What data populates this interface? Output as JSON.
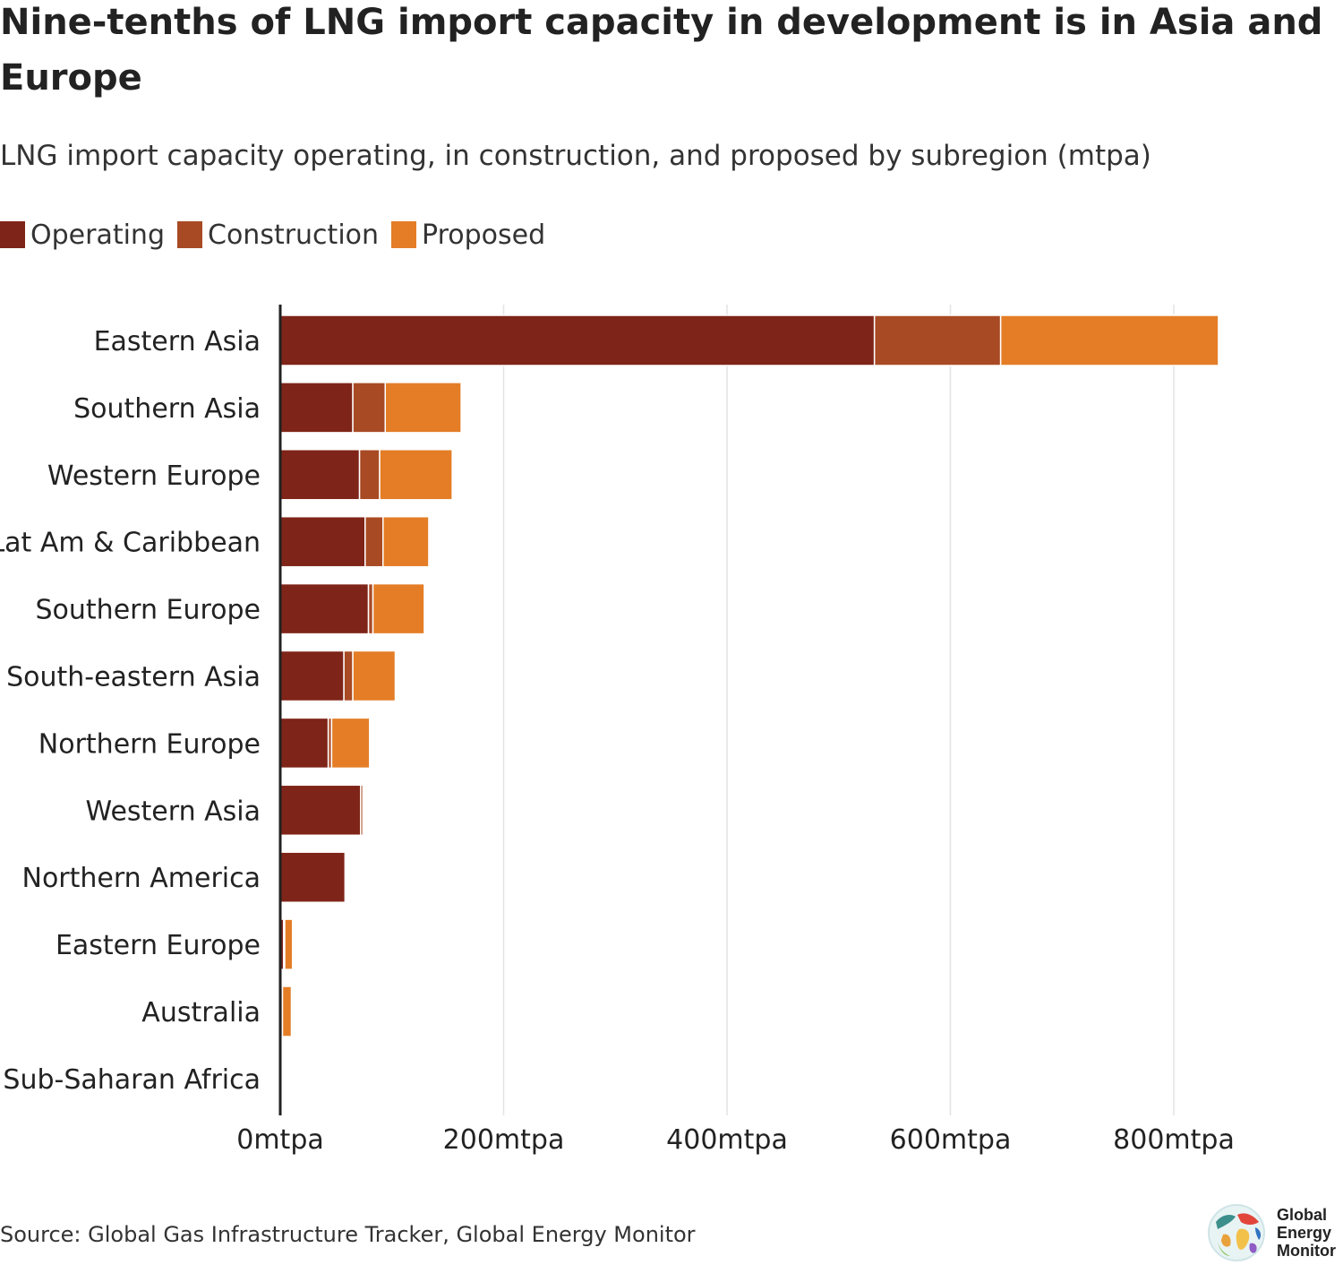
{
  "title": "Nine-tenths of LNG import capacity in development is in Asia and Europe",
  "subtitle": "LNG import capacity operating, in construction, and proposed by subregion (mtpa)",
  "legend": [
    {
      "label": "Operating",
      "color": "#7f2418"
    },
    {
      "label": "Construction",
      "color": "#a84a24"
    },
    {
      "label": "Proposed",
      "color": "#e47d26"
    }
  ],
  "source": "Source: Global Gas Infrastructure Tracker, Global Energy Monitor",
  "logo": {
    "line1": "Global",
    "line2": "Energy",
    "line3": "Monitor"
  },
  "chart_data": {
    "type": "bar",
    "orientation": "horizontal",
    "stacked": true,
    "title": "Nine-tenths of LNG import capacity in development is in Asia and Europe",
    "xlabel": "",
    "ylabel": "",
    "xlim": [
      0,
      880
    ],
    "xticks": [
      0,
      200,
      400,
      600,
      800
    ],
    "tick_suffix": "mtpa",
    "grid": true,
    "legend_position": "top-left",
    "categories": [
      "Eastern Asia",
      "Southern Asia",
      "Western Europe",
      "Lat Am & Caribbean",
      "Southern Europe",
      "South-eastern Asia",
      "Northern Europe",
      "Western Asia",
      "Northern America",
      "Eastern Europe",
      "Australia",
      "Sub-Saharan Africa"
    ],
    "series": [
      {
        "name": "Operating",
        "color": "#7f2418",
        "values": [
          532,
          65,
          71,
          76,
          79,
          57,
          43,
          72,
          58,
          3,
          2,
          1
        ]
      },
      {
        "name": "Construction",
        "color": "#a84a24",
        "values": [
          113,
          29,
          18,
          16,
          4,
          8,
          3,
          2,
          0,
          1,
          0,
          1
        ]
      },
      {
        "name": "Proposed",
        "color": "#e47d26",
        "values": [
          195,
          68,
          65,
          41,
          46,
          38,
          34,
          0,
          0,
          7,
          8,
          1
        ]
      }
    ]
  }
}
